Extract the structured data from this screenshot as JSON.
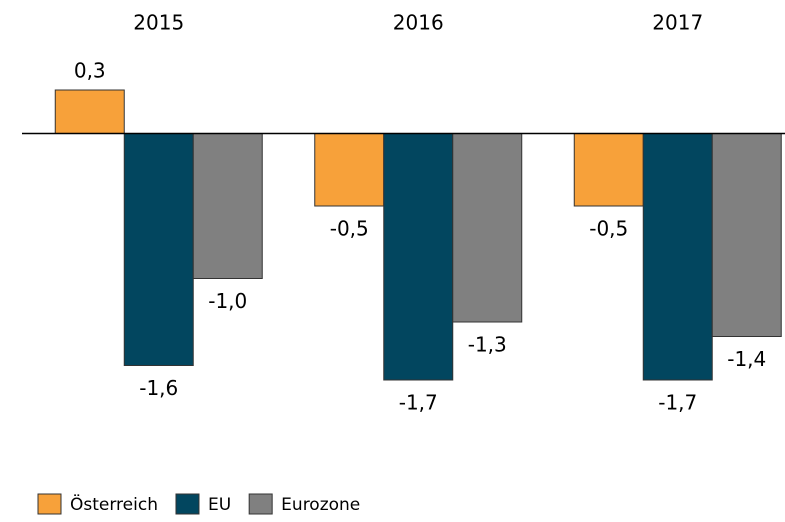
{
  "chart_data": {
    "type": "bar",
    "categories": [
      "2015",
      "2016",
      "2017"
    ],
    "series": [
      {
        "name": "Österreich",
        "color": "#f7a13a",
        "values": [
          0.3,
          -0.5,
          -0.5
        ],
        "value_labels": [
          "0,3",
          "-0,5",
          "-0,5"
        ]
      },
      {
        "name": "EU",
        "color": "#02465f",
        "values": [
          -1.6,
          -1.7,
          -1.7
        ],
        "value_labels": [
          "-1,6",
          "-1,7",
          "-1,7"
        ]
      },
      {
        "name": "Eurozone",
        "color": "#808080",
        "values": [
          -1.0,
          -1.3,
          -1.4
        ],
        "value_labels": [
          "-1,0",
          "-1,3",
          "-1,4"
        ]
      }
    ],
    "legend": "bottom-left"
  }
}
